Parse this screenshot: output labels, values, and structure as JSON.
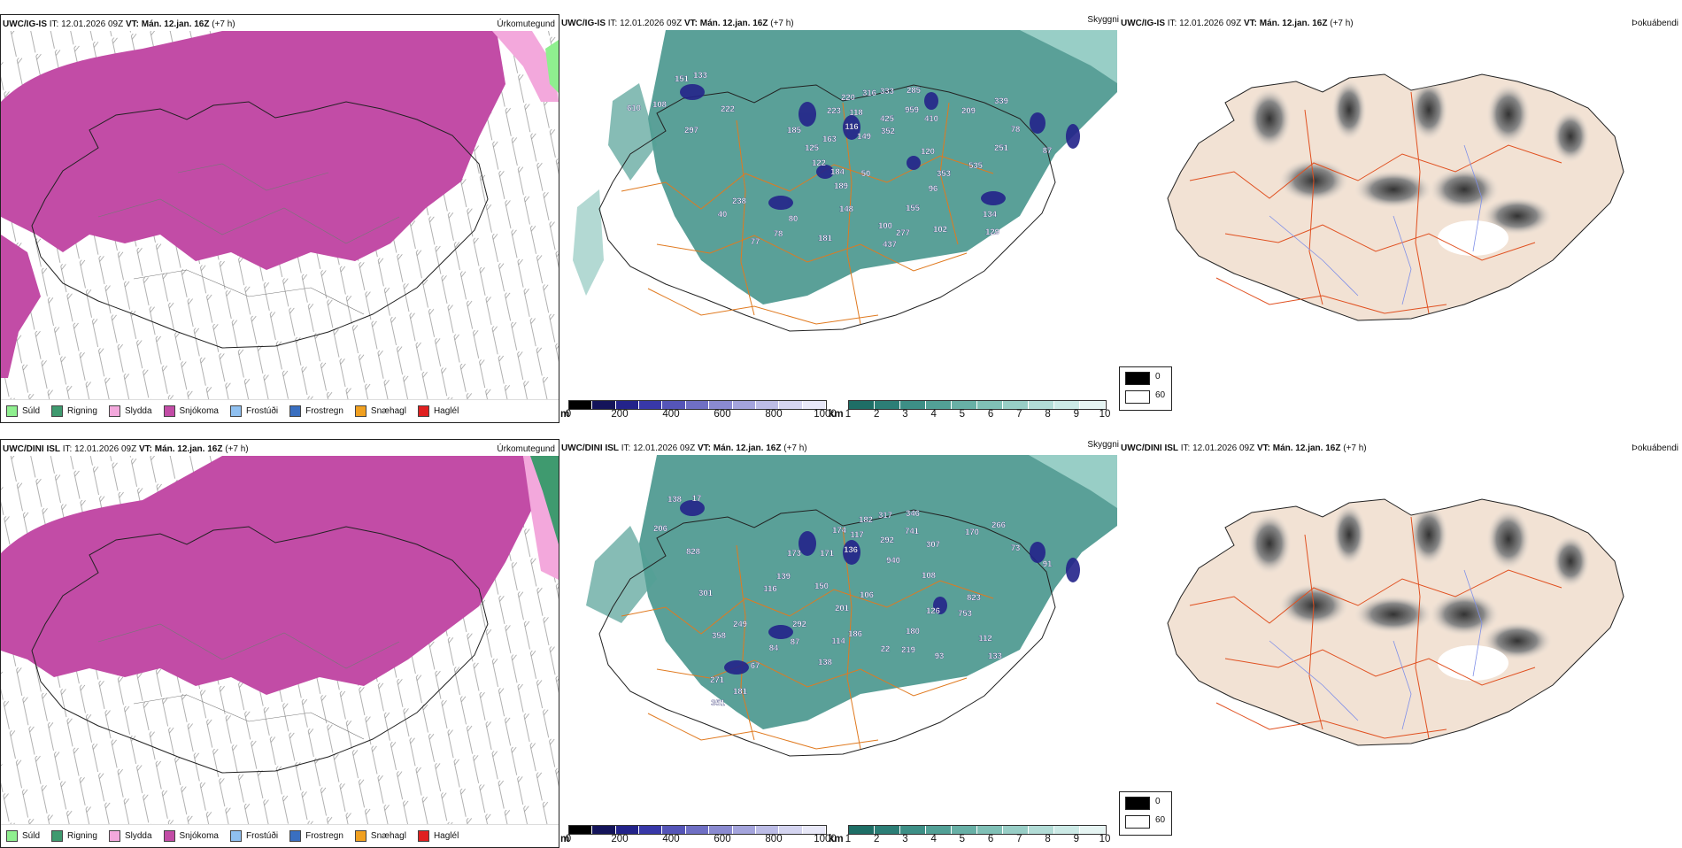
{
  "rows": [
    {
      "model": "UWC/IG-IS",
      "it_label": "IT:",
      "it_value": "12.01.2026 09Z",
      "vt_label": "VT:",
      "vt_value": "Mán. 12.jan. 16Z",
      "lead": "(+7 h)"
    },
    {
      "model": "UWC/DINI ISL",
      "it_label": "IT:",
      "it_value": "12.01.2026 09Z",
      "vt_label": "VT:",
      "vt_value": "Mán. 12.jan. 16Z",
      "lead": "(+7 h)"
    }
  ],
  "panel_titles": {
    "precip": "Úrkomutegund",
    "cloud": "Skyggni",
    "fog": "Þokuábendi"
  },
  "precip_legend": [
    {
      "label": "Súld",
      "color": "#8fef8f"
    },
    {
      "label": "Rigning",
      "color": "#3f9a6f"
    },
    {
      "label": "Slydda",
      "color": "#f3a8dc"
    },
    {
      "label": "Snjókoma",
      "color": "#c24ca6"
    },
    {
      "label": "Frostúði",
      "color": "#8fc0f0"
    },
    {
      "label": "Frostregn",
      "color": "#3a6fc0"
    },
    {
      "label": "Snæhagl",
      "color": "#f0a020"
    },
    {
      "label": "Haglél",
      "color": "#e02020"
    }
  ],
  "height_scale": {
    "unit": "m",
    "ticks": [
      "0",
      "200",
      "400",
      "600",
      "800",
      "1000"
    ],
    "colors": [
      "#000000",
      "#14145a",
      "#23238a",
      "#3838a8",
      "#5555b8",
      "#6f6fc4",
      "#8a8ad0",
      "#a4a4dc",
      "#bcbce6",
      "#d4d4f0",
      "#e8e8f8"
    ]
  },
  "visibility_scale": {
    "unit": "km",
    "ticks": [
      "1",
      "2",
      "3",
      "4",
      "5",
      "6",
      "7",
      "8",
      "9",
      "10"
    ],
    "colors": [
      "#1e6e66",
      "#2c7e76",
      "#3d8f86",
      "#52a096",
      "#68b0a6",
      "#80c0b6",
      "#98cec6",
      "#b2dcd6",
      "#cceae6",
      "#e6f5f3"
    ]
  },
  "fog_legend": {
    "high": "0",
    "low": "60",
    "high_color": "#000000",
    "low_color": "#ffffff"
  },
  "labels_top": [
    {
      "t": "151",
      "x": 770,
      "y": 92
    },
    {
      "t": "133",
      "x": 791,
      "y": 88
    },
    {
      "t": "610",
      "x": 716,
      "y": 125
    },
    {
      "t": "108",
      "x": 745,
      "y": 121
    },
    {
      "t": "222",
      "x": 822,
      "y": 126
    },
    {
      "t": "297",
      "x": 781,
      "y": 150
    },
    {
      "t": "220",
      "x": 958,
      "y": 113
    },
    {
      "t": "316",
      "x": 982,
      "y": 108
    },
    {
      "t": "333",
      "x": 1002,
      "y": 106
    },
    {
      "t": "285",
      "x": 1032,
      "y": 105
    },
    {
      "t": "223",
      "x": 942,
      "y": 128
    },
    {
      "t": "118",
      "x": 967,
      "y": 130
    },
    {
      "t": "959",
      "x": 1030,
      "y": 127
    },
    {
      "t": "410",
      "x": 1052,
      "y": 137
    },
    {
      "t": "425",
      "x": 1002,
      "y": 137
    },
    {
      "t": "339",
      "x": 1131,
      "y": 117
    },
    {
      "t": "209",
      "x": 1094,
      "y": 128
    },
    {
      "t": "185",
      "x": 897,
      "y": 150
    },
    {
      "t": "116",
      "x": 962,
      "y": 146
    },
    {
      "t": "352",
      "x": 1003,
      "y": 151
    },
    {
      "t": "163",
      "x": 937,
      "y": 160
    },
    {
      "t": "149",
      "x": 976,
      "y": 157
    },
    {
      "t": "78",
      "x": 1147,
      "y": 149
    },
    {
      "t": "120",
      "x": 1048,
      "y": 174
    },
    {
      "t": "251",
      "x": 1131,
      "y": 170
    },
    {
      "t": "87",
      "x": 1183,
      "y": 173
    },
    {
      "t": "122",
      "x": 925,
      "y": 187
    },
    {
      "t": "184",
      "x": 946,
      "y": 197
    },
    {
      "t": "50",
      "x": 978,
      "y": 199
    },
    {
      "t": "353",
      "x": 1066,
      "y": 199
    },
    {
      "t": "535",
      "x": 1102,
      "y": 190
    },
    {
      "t": "189",
      "x": 950,
      "y": 213
    },
    {
      "t": "96",
      "x": 1054,
      "y": 216
    },
    {
      "t": "238",
      "x": 835,
      "y": 230
    },
    {
      "t": "148",
      "x": 956,
      "y": 239
    },
    {
      "t": "155",
      "x": 1031,
      "y": 238
    },
    {
      "t": "134",
      "x": 1118,
      "y": 245
    },
    {
      "t": "40",
      "x": 816,
      "y": 245
    },
    {
      "t": "80",
      "x": 896,
      "y": 250
    },
    {
      "t": "100",
      "x": 1000,
      "y": 258
    },
    {
      "t": "277",
      "x": 1020,
      "y": 266
    },
    {
      "t": "102",
      "x": 1062,
      "y": 262
    },
    {
      "t": "129",
      "x": 1121,
      "y": 265
    },
    {
      "t": "78",
      "x": 879,
      "y": 267
    },
    {
      "t": "181",
      "x": 932,
      "y": 272
    },
    {
      "t": "437",
      "x": 1005,
      "y": 279
    },
    {
      "t": "77",
      "x": 853,
      "y": 276
    },
    {
      "t": "125",
      "x": 917,
      "y": 170
    }
  ],
  "labels_bottom": [
    {
      "t": "138",
      "x": 762,
      "y": 567
    },
    {
      "t": "17",
      "x": 787,
      "y": 566
    },
    {
      "t": "206",
      "x": 746,
      "y": 600
    },
    {
      "t": "828",
      "x": 783,
      "y": 626
    },
    {
      "t": "182",
      "x": 978,
      "y": 590
    },
    {
      "t": "317",
      "x": 1000,
      "y": 585
    },
    {
      "t": "346",
      "x": 1031,
      "y": 583
    },
    {
      "t": "170",
      "x": 1098,
      "y": 604
    },
    {
      "t": "266",
      "x": 1128,
      "y": 596
    },
    {
      "t": "174",
      "x": 948,
      "y": 602
    },
    {
      "t": "117",
      "x": 968,
      "y": 607
    },
    {
      "t": "741",
      "x": 1030,
      "y": 603
    },
    {
      "t": "292",
      "x": 1002,
      "y": 613
    },
    {
      "t": "307",
      "x": 1054,
      "y": 618
    },
    {
      "t": "136",
      "x": 961,
      "y": 624
    },
    {
      "t": "73",
      "x": 1147,
      "y": 622
    },
    {
      "t": "91",
      "x": 1183,
      "y": 640
    },
    {
      "t": "173",
      "x": 897,
      "y": 628
    },
    {
      "t": "171",
      "x": 934,
      "y": 628
    },
    {
      "t": "940",
      "x": 1009,
      "y": 636
    },
    {
      "t": "139",
      "x": 885,
      "y": 654
    },
    {
      "t": "116",
      "x": 870,
      "y": 668
    },
    {
      "t": "108",
      "x": 1049,
      "y": 653
    },
    {
      "t": "150",
      "x": 928,
      "y": 665
    },
    {
      "t": "106",
      "x": 979,
      "y": 675
    },
    {
      "t": "823",
      "x": 1100,
      "y": 678
    },
    {
      "t": "301",
      "x": 797,
      "y": 673
    },
    {
      "t": "201",
      "x": 951,
      "y": 690
    },
    {
      "t": "126",
      "x": 1054,
      "y": 693
    },
    {
      "t": "753",
      "x": 1090,
      "y": 696
    },
    {
      "t": "249",
      "x": 836,
      "y": 708
    },
    {
      "t": "292",
      "x": 903,
      "y": 708
    },
    {
      "t": "358",
      "x": 812,
      "y": 721
    },
    {
      "t": "87",
      "x": 898,
      "y": 728
    },
    {
      "t": "186",
      "x": 966,
      "y": 719
    },
    {
      "t": "114",
      "x": 947,
      "y": 727
    },
    {
      "t": "180",
      "x": 1031,
      "y": 716
    },
    {
      "t": "112",
      "x": 1113,
      "y": 724
    },
    {
      "t": "84",
      "x": 874,
      "y": 735
    },
    {
      "t": "22",
      "x": 1000,
      "y": 736
    },
    {
      "t": "219",
      "x": 1026,
      "y": 737
    },
    {
      "t": "93",
      "x": 1061,
      "y": 744
    },
    {
      "t": "133",
      "x": 1124,
      "y": 744
    },
    {
      "t": "67",
      "x": 853,
      "y": 755
    },
    {
      "t": "138",
      "x": 932,
      "y": 751
    },
    {
      "t": "271",
      "x": 810,
      "y": 771
    },
    {
      "t": "181",
      "x": 836,
      "y": 784
    },
    {
      "t": "351",
      "x": 811,
      "y": 797
    }
  ]
}
